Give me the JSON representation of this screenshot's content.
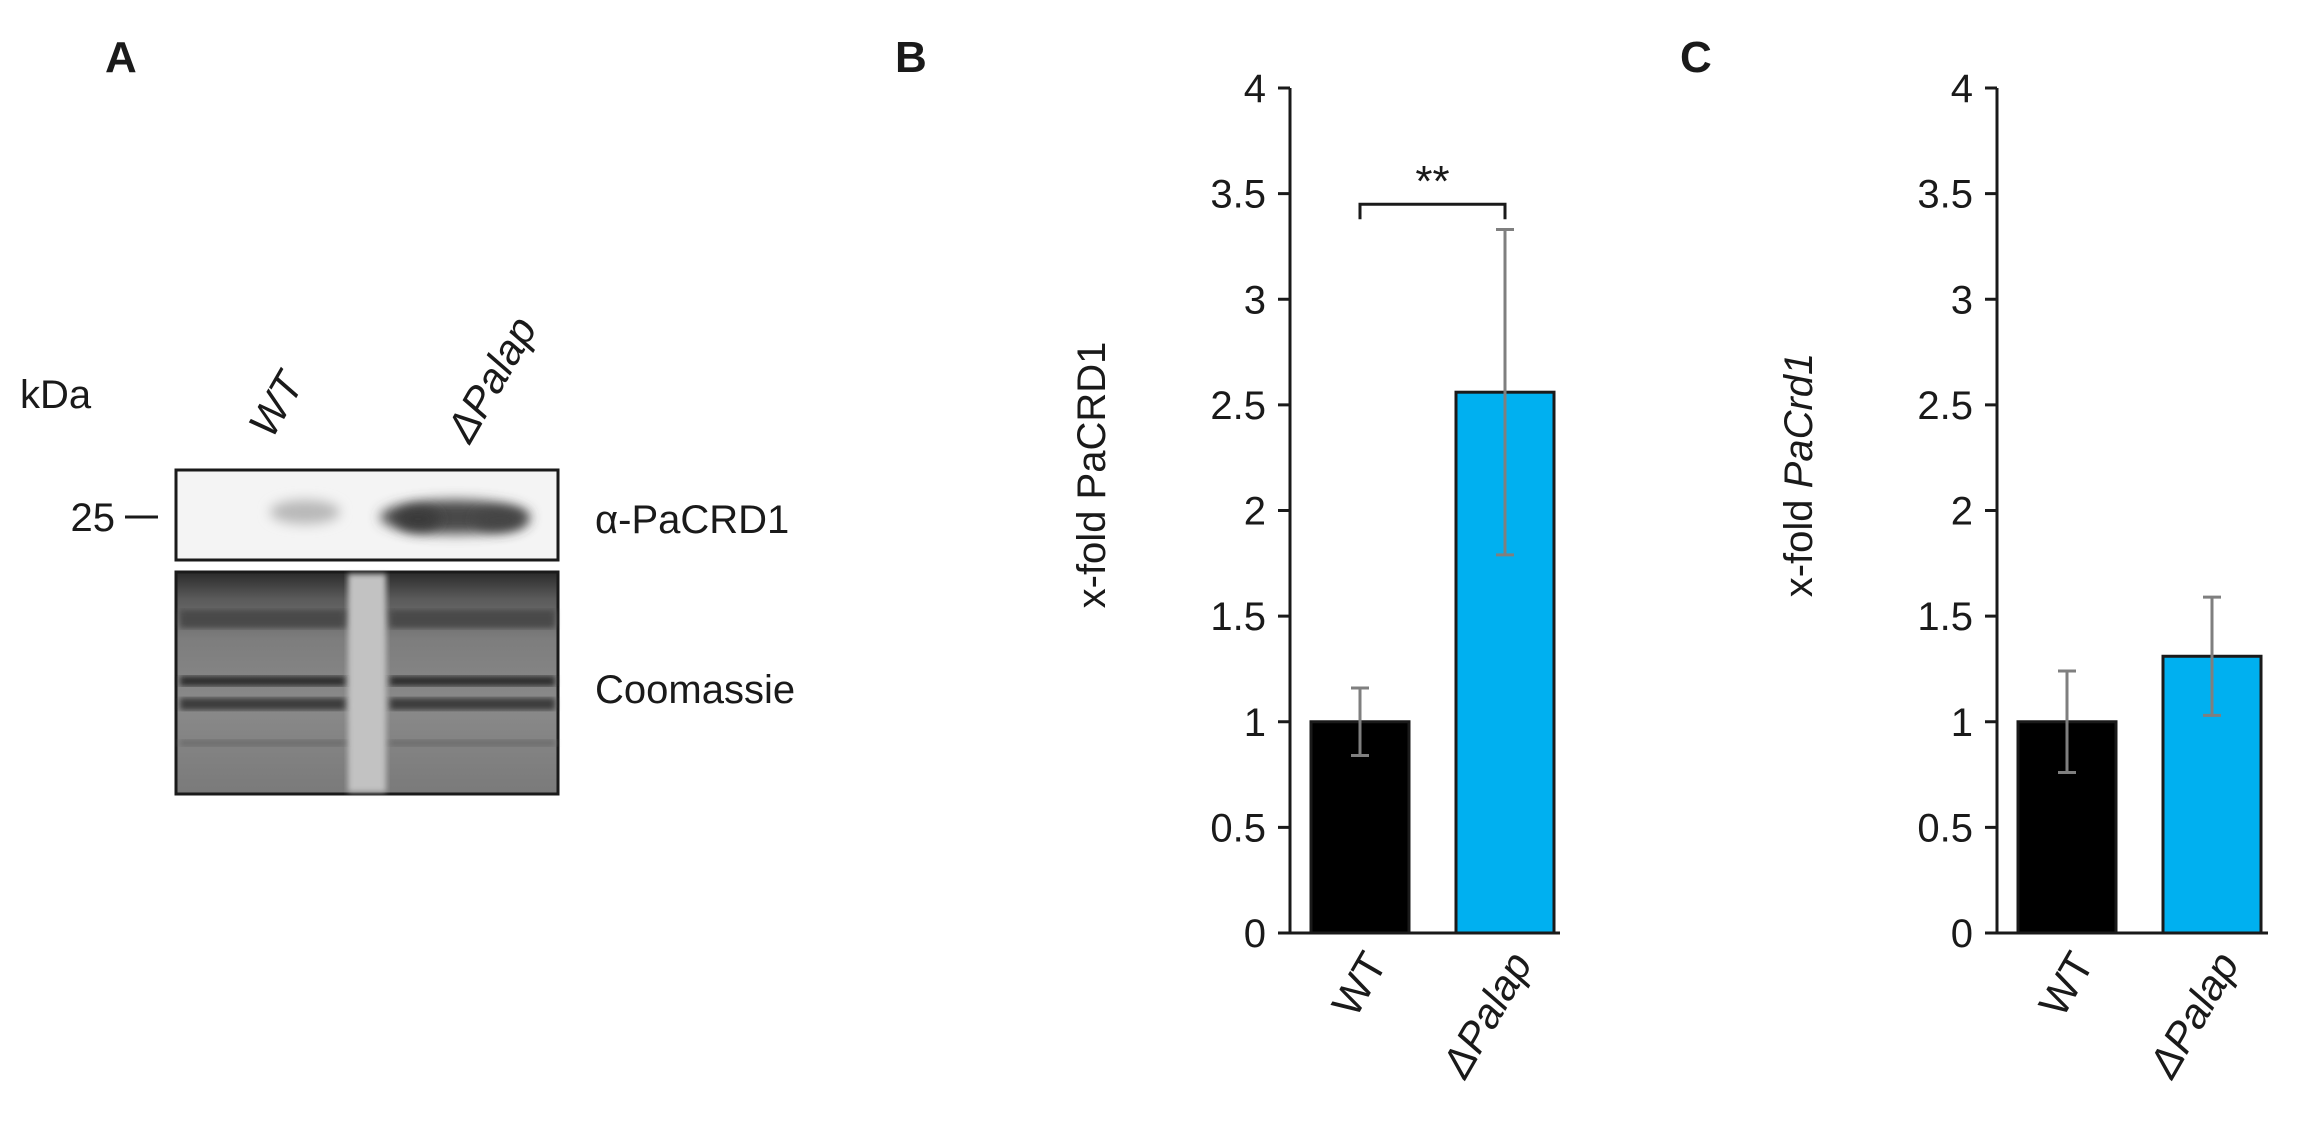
{
  "panels": {
    "a": {
      "letter": "A",
      "kda_label": "kDa",
      "marker_label": "25",
      "lanes": [
        "WT",
        "ΔPalap"
      ],
      "blot_label": "α-PaCRD1",
      "stain_label": "Coomassie"
    },
    "b": {
      "letter": "B"
    },
    "c": {
      "letter": "C"
    }
  },
  "colors": {
    "wt_bar": "#000000",
    "mutant_bar": "#00b0f0",
    "error_bar": "#7f7f7f",
    "axis": "#1a1a1a"
  },
  "chart_data": [
    {
      "type": "bar",
      "panel": "B",
      "categories": [
        "WT",
        "ΔPalap"
      ],
      "values": [
        1.0,
        2.56
      ],
      "error": [
        0.16,
        0.77
      ],
      "bar_colors": [
        "#000000",
        "#00b0f0"
      ],
      "ylabel": "x-fold PaCRD1",
      "ylim": [
        0,
        4
      ],
      "yticks": [
        "0",
        "0.5",
        "1",
        "1.5",
        "2",
        "2.5",
        "3",
        "3.5",
        "4"
      ],
      "annotation": "**",
      "grid": false
    },
    {
      "type": "bar",
      "panel": "C",
      "categories": [
        "WT",
        "ΔPalap"
      ],
      "values": [
        1.0,
        1.31
      ],
      "error": [
        0.24,
        0.28
      ],
      "bar_colors": [
        "#000000",
        "#00b0f0"
      ],
      "ylabel_prefix": "x-fold",
      "ylabel_gene": "PaCrd1",
      "ylim": [
        0,
        4
      ],
      "yticks": [
        "0",
        "0.5",
        "1",
        "1.5",
        "2",
        "2.5",
        "3",
        "3.5",
        "4"
      ],
      "grid": false
    }
  ]
}
